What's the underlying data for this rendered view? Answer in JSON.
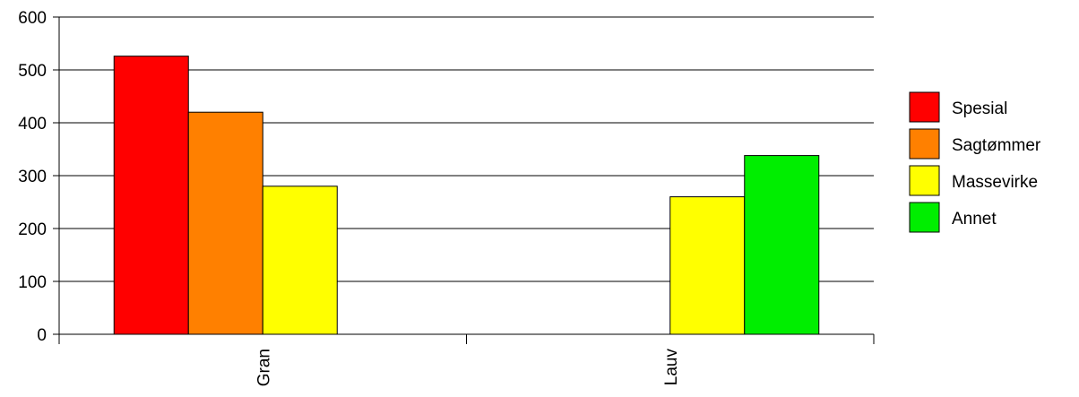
{
  "chart_data": {
    "type": "bar",
    "categories": [
      "Gran",
      "Lauv"
    ],
    "series": [
      {
        "name": "Spesial",
        "color": "#ff0000",
        "values": [
          526,
          null
        ]
      },
      {
        "name": "Sagtømmer",
        "color": "#ff8000",
        "values": [
          420,
          null
        ]
      },
      {
        "name": "Massevirke",
        "color": "#ffff00",
        "values": [
          280,
          260
        ]
      },
      {
        "name": "Annet",
        "color": "#00ee00",
        "values": [
          null,
          338
        ]
      }
    ],
    "ylim": [
      0,
      600
    ],
    "yticks": [
      0,
      100,
      200,
      300,
      400,
      500,
      600
    ],
    "grid": true,
    "legend_position": "right",
    "category_label_orientation": "vertical"
  }
}
